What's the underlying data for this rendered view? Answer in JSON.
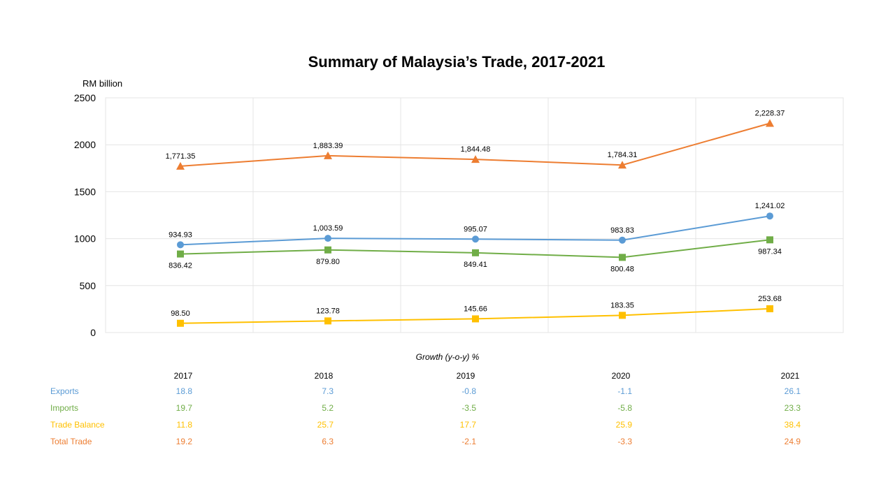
{
  "chart_data": {
    "type": "line",
    "title": "Summary of Malaysia’s Trade, 2017-2021",
    "ylabel": "RM billion",
    "ylim": [
      0,
      2500
    ],
    "yticks": [
      0,
      500,
      1000,
      1500,
      2000,
      2500
    ],
    "grid": true,
    "categories": [
      "2017",
      "2018",
      "2019",
      "2020",
      "2021"
    ],
    "series": [
      {
        "key": "total",
        "color": "#ED7D31",
        "marker": "triangle",
        "values": [
          1771.35,
          1883.39,
          1844.48,
          1784.31,
          2228.37
        ],
        "labels": [
          "1,771.35",
          "1,883.39",
          "1,844.48",
          "1,784.31",
          "2,228.37"
        ],
        "label_pos": [
          "above",
          "above",
          "above",
          "above",
          "above"
        ]
      },
      {
        "key": "exports",
        "color": "#5B9BD5",
        "marker": "circle",
        "values": [
          934.93,
          1003.59,
          995.07,
          983.83,
          1241.02
        ],
        "labels": [
          "934.93",
          "1,003.59",
          "995.07",
          "983.83",
          "1,241.02"
        ],
        "label_pos": [
          "above",
          "above",
          "above",
          "above",
          "above"
        ]
      },
      {
        "key": "imports",
        "color": "#70AD47",
        "marker": "square",
        "values": [
          836.42,
          879.8,
          849.41,
          800.48,
          987.34
        ],
        "labels": [
          "836.42",
          "879.80",
          "849.41",
          "800.48",
          "987.34"
        ],
        "label_pos": [
          "below",
          "below",
          "below",
          "below",
          "below"
        ]
      },
      {
        "key": "balance",
        "color": "#FFC000",
        "marker": "square",
        "values": [
          98.5,
          123.78,
          145.66,
          183.35,
          253.68
        ],
        "labels": [
          "98.50",
          "123.78",
          "145.66",
          "183.35",
          "253.68"
        ],
        "label_pos": [
          "above",
          "above",
          "above",
          "above",
          "above"
        ]
      }
    ]
  },
  "growth": {
    "title": "Growth (y-o-y) %",
    "years": [
      "2017",
      "2018",
      "2019",
      "2020",
      "2021"
    ],
    "rows": [
      {
        "name": "Exports",
        "color": "#5B9BD5",
        "values": [
          "18.8",
          "7.3",
          "-0.8",
          "-1.1",
          "26.1"
        ]
      },
      {
        "name": "Imports",
        "color": "#70AD47",
        "values": [
          "19.7",
          "5.2",
          "-3.5",
          "-5.8",
          "23.3"
        ]
      },
      {
        "name": "Trade Balance",
        "color": "#FFC000",
        "values": [
          "11.8",
          "25.7",
          "17.7",
          "25.9",
          "38.4"
        ]
      },
      {
        "name": "Total Trade",
        "color": "#ED7D31",
        "values": [
          "19.2",
          "6.3",
          "-2.1",
          "-3.3",
          "24.9"
        ]
      }
    ]
  }
}
